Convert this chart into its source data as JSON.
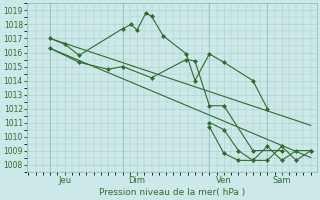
{
  "title": "Pression niveau de la mer( hPa )",
  "background_color": "#cce8e8",
  "grid_color": "#aacccc",
  "line_color": "#2d6e2d",
  "ylim": [
    1007.5,
    1019.5
  ],
  "xlim": [
    -0.3,
    9.7
  ],
  "xtick_positions": [
    1,
    3.5,
    6.5,
    8.5
  ],
  "xtick_labels": [
    "Jeu",
    "Dim",
    "Ven",
    "Sam"
  ],
  "vline_positions": [
    0.5,
    3.0,
    6.0,
    8.0
  ],
  "series1_x": [
    0.5,
    1.0,
    1.5,
    3.0,
    3.3,
    3.5,
    3.8,
    4.0,
    4.4,
    5.2,
    5.5,
    6.0,
    6.5,
    7.5,
    8.0
  ],
  "values1": [
    1017.0,
    1016.6,
    1015.8,
    1017.7,
    1018.0,
    1017.6,
    1018.8,
    1018.6,
    1017.2,
    1015.9,
    1014.0,
    1015.9,
    1015.3,
    1014.0,
    1012.0
  ],
  "series2_x": [
    0.5,
    1.5,
    2.5,
    3.0,
    4.0,
    5.2,
    5.5,
    6.0,
    6.5,
    7.5,
    8.5
  ],
  "values2": [
    1016.3,
    1015.3,
    1014.8,
    1015.0,
    1014.2,
    1015.5,
    1015.4,
    1012.2,
    1012.2,
    1009.0,
    1009.0
  ],
  "trend1_x": [
    0.5,
    9.5
  ],
  "trend1_y": [
    1017.0,
    1010.8
  ],
  "trend2_x": [
    0.5,
    9.5
  ],
  "trend2_y": [
    1016.3,
    1008.5
  ],
  "series3_x": [
    6.0,
    6.5,
    7.0,
    7.5,
    8.0,
    8.5,
    9.0,
    9.5
  ],
  "values3": [
    1011.0,
    1010.5,
    1009.0,
    1008.3,
    1008.3,
    1009.3,
    1008.3,
    1009.0
  ],
  "series4_x": [
    6.0,
    6.5,
    7.0,
    7.5,
    8.0,
    8.5,
    9.0,
    9.5
  ],
  "values4": [
    1010.7,
    1008.8,
    1008.3,
    1008.3,
    1009.3,
    1008.3,
    1009.0,
    1009.0
  ]
}
